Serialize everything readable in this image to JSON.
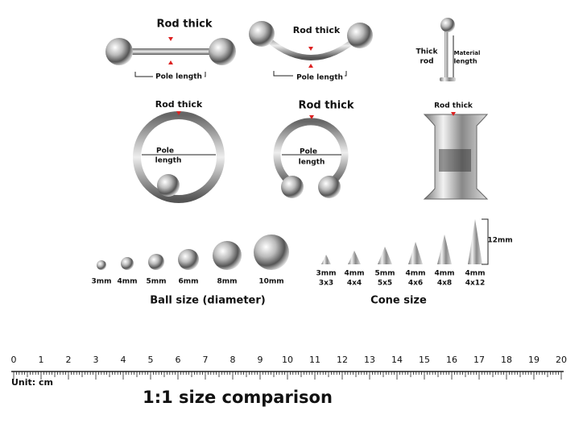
{
  "barbell": {
    "rod_label": "Rod thick",
    "length_label": "Pole length"
  },
  "curved_barbell": {
    "rod_label": "Rod thick",
    "length_label": "Pole length"
  },
  "labret": {
    "rod_label": [
      "Thick",
      "rod"
    ],
    "length_label": [
      "Material",
      "length"
    ]
  },
  "captive_ring": {
    "rod_label": "Rod thick",
    "length_label": [
      "Pole",
      "length"
    ]
  },
  "horseshoe": {
    "rod_label": "Rod thick",
    "length_label": [
      "Pole",
      "length"
    ]
  },
  "tunnel": {
    "rod_label": "Rod thick"
  },
  "balls": {
    "sizes": [
      "3mm",
      "4mm",
      "5mm",
      "6mm",
      "8mm",
      "10mm"
    ],
    "caption": "Ball size (diameter)"
  },
  "cones": {
    "sizes": [
      [
        "3mm",
        "3x3"
      ],
      [
        "4mm",
        "4x4"
      ],
      [
        "5mm",
        "5x5"
      ],
      [
        "4mm",
        "4x6"
      ],
      [
        "4mm",
        "4x8"
      ],
      [
        "4mm",
        "4x12"
      ]
    ],
    "height_label": "12mm",
    "caption": "Cone size"
  },
  "ruler": {
    "labels": [
      0,
      1,
      2,
      3,
      4,
      5,
      6,
      7,
      8,
      9,
      10,
      11,
      12,
      13,
      14,
      15,
      16,
      17,
      18,
      19,
      20
    ],
    "unit": "Unit: cm"
  },
  "footer": {
    "title": "1:1 size comparison"
  }
}
